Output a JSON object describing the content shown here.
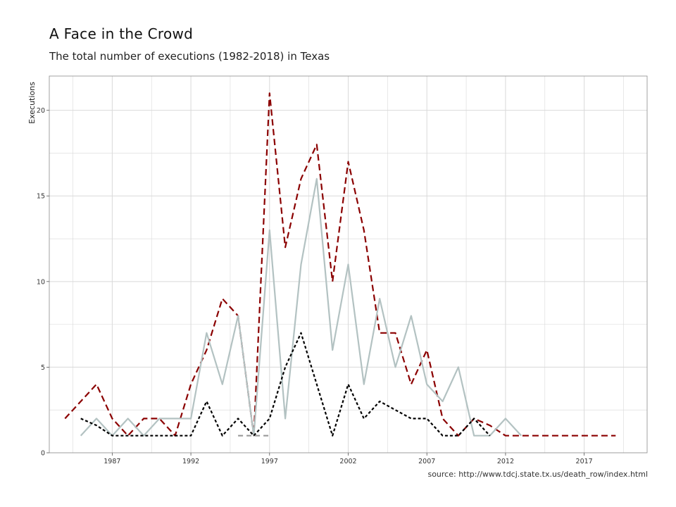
{
  "title": "A Face in the Crowd",
  "subtitle": "The total number of executions (1982-2018) in Texas",
  "source": "source: http://www.tdcj.state.tx.us/death_row/index.html",
  "colors": {
    "dark_red": "#8b0000",
    "light_gray": "#b3c2c2",
    "black": "#000000",
    "mid_gray": "#9a9a9a",
    "grid": "#d9d9d9",
    "panel_border": "#8c8c8c"
  },
  "chart_data": {
    "type": "line",
    "title": "A Face in the Crowd",
    "subtitle": "The total number of executions (1982-2018) in Texas",
    "xlabel": "",
    "ylabel": "Executions",
    "xlim": [
      1983,
      2021
    ],
    "ylim": [
      0,
      22
    ],
    "x_ticks": [
      1987,
      1992,
      1997,
      2002,
      2007,
      2012,
      2017
    ],
    "y_ticks": [
      0,
      5,
      10,
      15,
      20
    ],
    "grid": true,
    "legend": "none",
    "series": [
      {
        "color": "#8b0000",
        "dash": "long-dash",
        "x": [
          1984,
          1985,
          1986,
          1987,
          1988,
          1989,
          1990,
          1991,
          1992,
          1993,
          1994,
          1995,
          1996,
          1997,
          1998,
          1999,
          2000,
          2001,
          2002,
          2003,
          2004,
          2005,
          2006,
          2007,
          2008,
          2009,
          2010,
          2011,
          2012,
          2013,
          2014,
          2015,
          2016,
          2017,
          2018,
          2019
        ],
        "values": [
          2,
          3,
          4,
          2,
          1,
          2,
          2,
          1,
          4,
          6,
          9,
          8,
          1,
          21,
          12,
          16,
          18,
          10,
          17,
          13,
          7,
          7,
          4,
          6,
          2,
          1,
          2,
          1.6,
          1,
          1,
          1,
          1,
          1,
          1,
          1,
          1
        ]
      },
      {
        "color": "#b3c2c2",
        "dash": "solid",
        "x": [
          1985,
          1986,
          1987,
          1988,
          1989,
          1990,
          1991,
          1992,
          1993,
          1994,
          1995,
          1996,
          1997,
          1998,
          1999,
          2000,
          2001,
          2002,
          2003,
          2004,
          2005,
          2006,
          2007,
          2008,
          2009,
          2010,
          2011,
          2012,
          2013
        ],
        "values": [
          1,
          2,
          1,
          2,
          1,
          2,
          2,
          2,
          7,
          4,
          8,
          1,
          13,
          2,
          11,
          16,
          6,
          11,
          4,
          9,
          5,
          8,
          4,
          3,
          5,
          1,
          1,
          2,
          1
        ]
      },
      {
        "color": "#000000",
        "dash": "short-dash",
        "x": [
          1985,
          1986,
          1987,
          1988,
          1989,
          1990,
          1991,
          1992,
          1993,
          1994,
          1995,
          1996,
          1997,
          1998,
          1999,
          2000,
          2001,
          2002,
          2003,
          2004,
          2005,
          2006,
          2007,
          2008,
          2009,
          2010,
          2011
        ],
        "values": [
          2,
          1.6,
          1,
          1,
          1,
          1,
          1,
          1,
          3,
          1,
          2,
          1,
          2,
          5,
          7,
          4,
          1,
          4,
          2,
          3,
          2.5,
          2,
          2,
          1,
          1,
          2,
          1
        ]
      },
      {
        "color": "#9a9a9a",
        "dash": "medium-dash",
        "x": [
          1995,
          1996,
          1997
        ],
        "values": [
          1,
          1,
          1
        ]
      }
    ]
  }
}
